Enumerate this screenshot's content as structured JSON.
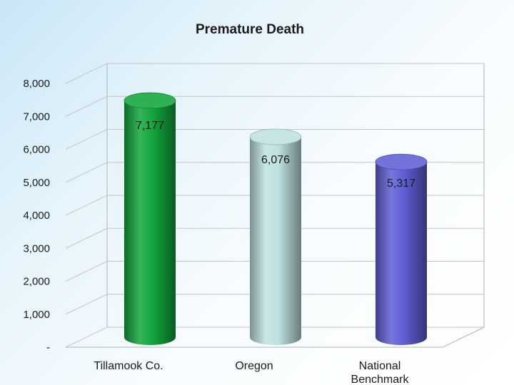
{
  "chart_data": {
    "type": "bar",
    "style": "3d-cylinder",
    "title": "Premature Death",
    "categories": [
      "Tillamook Co.",
      "Oregon",
      "National\nBenchmark"
    ],
    "values": [
      7177,
      6076,
      5317
    ],
    "data_labels": [
      "7,177",
      "6,076",
      "5,317"
    ],
    "colors": [
      "#13a63c",
      "#bfe2e2",
      "#5f5fd6"
    ],
    "ylim": [
      0,
      8000
    ],
    "yticks": [
      0,
      1000,
      2000,
      3000,
      4000,
      5000,
      6000,
      7000,
      8000
    ],
    "ytick_labels": [
      "-",
      "1,000",
      "2,000",
      "3,000",
      "4,000",
      "5,000",
      "6,000",
      "7,000",
      "8,000"
    ],
    "xlabel": "",
    "ylabel": "",
    "grid": true,
    "legend": "none"
  }
}
